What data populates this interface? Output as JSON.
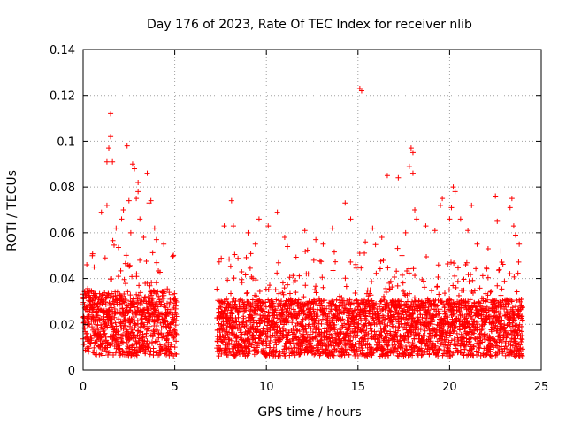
{
  "chart_data": {
    "type": "scatter",
    "title": "Day 176 of 2023, Rate Of TEC Index for receiver nlib",
    "xlabel": "GPS time / hours",
    "ylabel": "ROTI / TECUs",
    "xlim": [
      0,
      25
    ],
    "ylim": [
      0,
      0.14
    ],
    "xticks": [
      "0",
      "5",
      "10",
      "15",
      "20",
      "25"
    ],
    "yticks": [
      "0",
      "0.02",
      "0.04",
      "0.06",
      "0.08",
      "0.1",
      "0.12",
      "0.14"
    ],
    "grid": true,
    "marker": "+",
    "color": "#ff0000",
    "series": [
      {
        "segments": [
          {
            "x_range": [
              0,
              5.1
            ],
            "base": 0.02,
            "spread": 0.018
          },
          {
            "x_range": [
              7.3,
              24
            ],
            "base": 0.018,
            "spread": 0.016
          }
        ],
        "points": [
          [
            1.5,
            0.112
          ],
          [
            1.5,
            0.102
          ],
          [
            1.4,
            0.097
          ],
          [
            1.3,
            0.091
          ],
          [
            1.6,
            0.091
          ],
          [
            2.4,
            0.098
          ],
          [
            2.7,
            0.09
          ],
          [
            2.8,
            0.088
          ],
          [
            3.0,
            0.082
          ],
          [
            3.0,
            0.078
          ],
          [
            2.9,
            0.075
          ],
          [
            3.5,
            0.086
          ],
          [
            3.7,
            0.074
          ],
          [
            3.6,
            0.073
          ],
          [
            2.5,
            0.074
          ],
          [
            2.2,
            0.07
          ],
          [
            1.3,
            0.072
          ],
          [
            1.0,
            0.069
          ],
          [
            2.1,
            0.066
          ],
          [
            3.1,
            0.066
          ],
          [
            3.9,
            0.062
          ],
          [
            4.0,
            0.057
          ],
          [
            0.6,
            0.045
          ],
          [
            0.2,
            0.046
          ],
          [
            0.5,
            0.05
          ],
          [
            1.2,
            0.049
          ],
          [
            4.4,
            0.055
          ],
          [
            2.6,
            0.06
          ],
          [
            3.3,
            0.058
          ],
          [
            1.8,
            0.062
          ],
          [
            8.1,
            0.074
          ],
          [
            7.7,
            0.063
          ],
          [
            8.2,
            0.063
          ],
          [
            9.0,
            0.06
          ],
          [
            9.6,
            0.066
          ],
          [
            10.6,
            0.069
          ],
          [
            10.1,
            0.063
          ],
          [
            11.0,
            0.058
          ],
          [
            12.1,
            0.061
          ],
          [
            12.7,
            0.057
          ],
          [
            13.6,
            0.062
          ],
          [
            14.3,
            0.073
          ],
          [
            14.6,
            0.066
          ],
          [
            15.1,
            0.123
          ],
          [
            15.2,
            0.122
          ],
          [
            15.4,
            0.056
          ],
          [
            15.8,
            0.062
          ],
          [
            16.3,
            0.058
          ],
          [
            16.6,
            0.085
          ],
          [
            17.2,
            0.084
          ],
          [
            17.6,
            0.06
          ],
          [
            17.9,
            0.097
          ],
          [
            18.0,
            0.095
          ],
          [
            17.8,
            0.089
          ],
          [
            18.0,
            0.086
          ],
          [
            18.1,
            0.07
          ],
          [
            18.2,
            0.066
          ],
          [
            18.7,
            0.063
          ],
          [
            19.6,
            0.075
          ],
          [
            19.5,
            0.072
          ],
          [
            20.0,
            0.066
          ],
          [
            20.2,
            0.08
          ],
          [
            20.3,
            0.078
          ],
          [
            20.1,
            0.071
          ],
          [
            20.6,
            0.066
          ],
          [
            21.2,
            0.072
          ],
          [
            21.5,
            0.055
          ],
          [
            22.1,
            0.053
          ],
          [
            22.5,
            0.076
          ],
          [
            22.6,
            0.065
          ],
          [
            22.8,
            0.052
          ],
          [
            23.3,
            0.071
          ],
          [
            23.4,
            0.075
          ],
          [
            23.5,
            0.063
          ],
          [
            23.6,
            0.059
          ],
          [
            23.8,
            0.055
          ],
          [
            19.2,
            0.061
          ],
          [
            13.1,
            0.055
          ],
          [
            9.4,
            0.055
          ],
          [
            21.0,
            0.061
          ]
        ]
      }
    ]
  }
}
